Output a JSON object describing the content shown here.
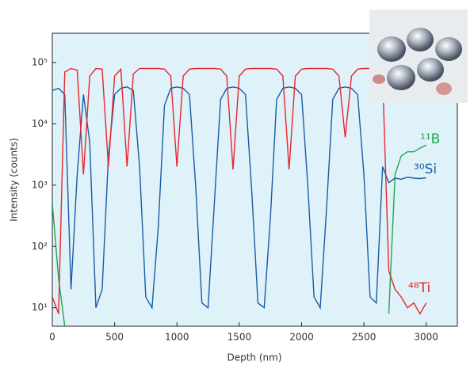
{
  "chart_data": {
    "type": "line",
    "x_label": "Depth (nm)",
    "y_label": "Intensity (counts)",
    "x": [
      0,
      50,
      100,
      150,
      200,
      250,
      300,
      350,
      400,
      450,
      500,
      550,
      600,
      650,
      700,
      750,
      800,
      850,
      900,
      950,
      1000,
      1050,
      1100,
      1150,
      1200,
      1250,
      1300,
      1350,
      1400,
      1450,
      1500,
      1550,
      1600,
      1650,
      1700,
      1750,
      1800,
      1850,
      1900,
      1950,
      2000,
      2050,
      2100,
      2150,
      2200,
      2250,
      2300,
      2350,
      2400,
      2450,
      2500,
      2550,
      2600,
      2650,
      2700,
      2750,
      2800,
      2850,
      2900,
      2950,
      3000
    ],
    "series": [
      {
        "name": "¹¹B",
        "color": "#1ea64e",
        "values": [
          500,
          30,
          5,
          null,
          null,
          null,
          null,
          null,
          null,
          null,
          null,
          null,
          null,
          null,
          null,
          null,
          null,
          null,
          null,
          null,
          null,
          null,
          null,
          null,
          null,
          null,
          null,
          null,
          null,
          null,
          null,
          null,
          null,
          null,
          null,
          null,
          null,
          null,
          null,
          null,
          null,
          null,
          null,
          null,
          null,
          null,
          null,
          null,
          null,
          null,
          null,
          null,
          null,
          null,
          8,
          1500,
          3000,
          3500,
          3500,
          4000,
          4500
        ]
      },
      {
        "name": "³⁰Si",
        "color": "#1a5ca6",
        "values": [
          35000,
          38000,
          30000,
          20,
          1500,
          30000,
          5000,
          10,
          20,
          3000,
          30000,
          38000,
          40000,
          35000,
          2000,
          15,
          10,
          200,
          20000,
          38000,
          40000,
          38000,
          30000,
          1000,
          12,
          10,
          500,
          25000,
          38000,
          40000,
          38000,
          30000,
          800,
          12,
          10,
          300,
          25000,
          38000,
          40000,
          38000,
          30000,
          1000,
          15,
          10,
          400,
          25000,
          38000,
          40000,
          38000,
          30000,
          1500,
          15,
          12,
          2000,
          1100,
          1300,
          1250,
          1350,
          1300,
          1280,
          1320
        ]
      },
      {
        "name": "⁴⁸Ti",
        "color": "#e8262b",
        "values": [
          15,
          8,
          70000,
          80000,
          75000,
          1500,
          60000,
          80000,
          78000,
          2000,
          60000,
          78000,
          2000,
          65000,
          80000,
          80000,
          80000,
          80000,
          78000,
          60000,
          2000,
          60000,
          78000,
          80000,
          80000,
          80000,
          80000,
          78000,
          60000,
          1800,
          60000,
          78000,
          80000,
          80000,
          80000,
          80000,
          78000,
          60000,
          1800,
          60000,
          78000,
          80000,
          80000,
          80000,
          80000,
          78000,
          60000,
          6000,
          60000,
          78000,
          80000,
          80000,
          80000,
          60000,
          40,
          20,
          15,
          10,
          12,
          8,
          12
        ]
      }
    ],
    "xlim": [
      0,
      3250
    ],
    "xticks": [
      0,
      500,
      1000,
      1500,
      2000,
      2500,
      3000
    ],
    "ylim": [
      5,
      300000
    ],
    "log_y": true,
    "yticks": [
      {
        "value": 10,
        "label": "10¹"
      },
      {
        "value": 100,
        "label": "10²"
      },
      {
        "value": 1000,
        "label": "10³"
      },
      {
        "value": 10000,
        "label": "10⁴"
      },
      {
        "value": 100000,
        "label": "10⁵"
      }
    ],
    "background": "#dff2f9"
  }
}
